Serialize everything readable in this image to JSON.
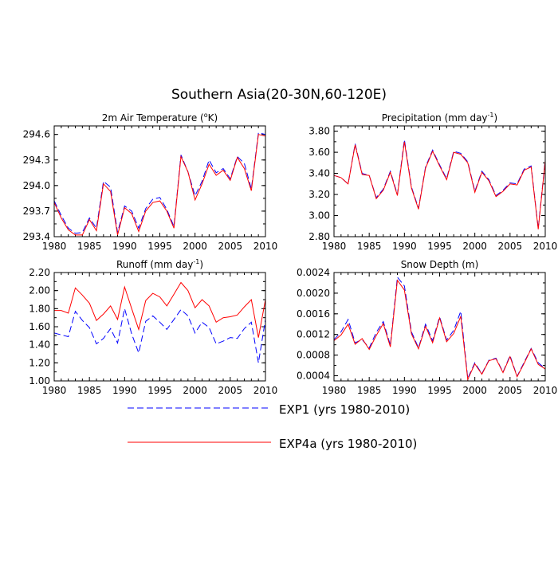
{
  "page_title": "Southern Asia(20-30N,60-120E)",
  "legend": [
    {
      "name": "EXP1 (yrs 1980-2010)",
      "color": "#0000ff",
      "dash": true
    },
    {
      "name": "EXP4a (yrs 1980-2010)",
      "color": "#ff0000",
      "dash": false
    }
  ],
  "chart_data": [
    {
      "type": "line",
      "title": "2m Air Temperature (",
      "title_unit": "o",
      "title_suffix": "K)",
      "x": [
        1980,
        1981,
        1982,
        1983,
        1984,
        1985,
        1986,
        1987,
        1988,
        1989,
        1990,
        1991,
        1992,
        1993,
        1994,
        1995,
        1996,
        1997,
        1998,
        1999,
        2000,
        2001,
        2002,
        2003,
        2004,
        2005,
        2006,
        2007,
        2008,
        2009,
        2010
      ],
      "xlim": [
        1980,
        2010
      ],
      "xticks": [
        "1980",
        "1985",
        "1990",
        "1995",
        "2000",
        "2005",
        "2010"
      ],
      "ylim": [
        293.4,
        294.7
      ],
      "yticks": [
        "293.4",
        "293.7",
        "294.0",
        "294.3",
        "294.6"
      ],
      "series": [
        {
          "name": "EXP1",
          "values": [
            293.82,
            293.65,
            293.5,
            293.44,
            293.45,
            293.62,
            293.5,
            294.05,
            293.98,
            293.45,
            293.76,
            293.7,
            293.5,
            293.73,
            293.84,
            293.86,
            293.72,
            293.52,
            294.36,
            294.16,
            293.88,
            294.05,
            294.3,
            294.15,
            294.2,
            294.08,
            294.34,
            294.26,
            293.96,
            294.62,
            294.6
          ]
        },
        {
          "name": "EXP4a",
          "values": [
            293.8,
            293.62,
            293.48,
            293.42,
            293.42,
            293.6,
            293.47,
            294.02,
            293.93,
            293.42,
            293.74,
            293.67,
            293.46,
            293.7,
            293.8,
            293.82,
            293.7,
            293.5,
            294.34,
            294.16,
            293.83,
            294.02,
            294.25,
            294.12,
            294.18,
            294.06,
            294.33,
            294.2,
            293.94,
            294.6,
            294.58
          ]
        }
      ]
    },
    {
      "type": "line",
      "title": "Precipitation (mm day",
      "title_unit": "-1",
      "title_suffix": ")",
      "x": [
        1980,
        1981,
        1982,
        1983,
        1984,
        1985,
        1986,
        1987,
        1988,
        1989,
        1990,
        1991,
        1992,
        1993,
        1994,
        1995,
        1996,
        1997,
        1998,
        1999,
        2000,
        2001,
        2002,
        2003,
        2004,
        2005,
        2006,
        2007,
        2008,
        2009,
        2010
      ],
      "xlim": [
        1980,
        2010
      ],
      "xticks": [
        "1980",
        "1985",
        "1990",
        "1995",
        "2000",
        "2005",
        "2010"
      ],
      "ylim": [
        2.8,
        3.85
      ],
      "yticks": [
        "2.80",
        "3.00",
        "3.20",
        "3.40",
        "3.60",
        "3.80"
      ],
      "series": [
        {
          "name": "EXP1",
          "values": [
            3.38,
            3.36,
            3.3,
            3.68,
            3.4,
            3.38,
            3.17,
            3.25,
            3.42,
            3.2,
            3.72,
            3.27,
            3.07,
            3.46,
            3.62,
            3.48,
            3.35,
            3.61,
            3.59,
            3.51,
            3.23,
            3.42,
            3.34,
            3.19,
            3.24,
            3.31,
            3.3,
            3.44,
            3.47,
            2.88,
            3.53
          ]
        },
        {
          "name": "EXP4a",
          "values": [
            3.38,
            3.36,
            3.3,
            3.67,
            3.39,
            3.38,
            3.16,
            3.24,
            3.41,
            3.19,
            3.7,
            3.26,
            3.06,
            3.45,
            3.61,
            3.47,
            3.34,
            3.6,
            3.58,
            3.5,
            3.22,
            3.41,
            3.33,
            3.18,
            3.23,
            3.3,
            3.29,
            3.43,
            3.46,
            2.87,
            3.52
          ]
        }
      ]
    },
    {
      "type": "line",
      "title": "Runoff (mm day",
      "title_unit": "-1",
      "title_suffix": ")",
      "x": [
        1980,
        1981,
        1982,
        1983,
        1984,
        1985,
        1986,
        1987,
        1988,
        1989,
        1990,
        1991,
        1992,
        1993,
        1994,
        1995,
        1996,
        1997,
        1998,
        1999,
        2000,
        2001,
        2002,
        2003,
        2004,
        2005,
        2006,
        2007,
        2008,
        2009,
        2010
      ],
      "xlim": [
        1980,
        2010
      ],
      "xticks": [
        "1980",
        "1985",
        "1990",
        "1995",
        "2000",
        "2005",
        "2010"
      ],
      "ylim": [
        1.0,
        2.2
      ],
      "yticks": [
        "1.00",
        "1.20",
        "1.40",
        "1.60",
        "1.80",
        "2.00",
        "2.20"
      ],
      "series": [
        {
          "name": "EXP1",
          "values": [
            1.53,
            1.51,
            1.49,
            1.77,
            1.67,
            1.59,
            1.41,
            1.47,
            1.58,
            1.42,
            1.8,
            1.52,
            1.31,
            1.66,
            1.72,
            1.65,
            1.57,
            1.68,
            1.79,
            1.72,
            1.53,
            1.65,
            1.59,
            1.41,
            1.44,
            1.48,
            1.47,
            1.58,
            1.65,
            1.2,
            1.68
          ]
        },
        {
          "name": "EXP4a",
          "values": [
            1.78,
            1.78,
            1.75,
            2.03,
            1.95,
            1.86,
            1.67,
            1.74,
            1.83,
            1.68,
            2.04,
            1.8,
            1.57,
            1.89,
            1.97,
            1.93,
            1.83,
            1.96,
            2.09,
            2.0,
            1.81,
            1.9,
            1.83,
            1.65,
            1.7,
            1.71,
            1.73,
            1.82,
            1.9,
            1.48,
            1.9
          ]
        }
      ]
    },
    {
      "type": "line",
      "title": "Snow Depth (m)",
      "title_unit": "",
      "title_suffix": "",
      "x": [
        1980,
        1981,
        1982,
        1983,
        1984,
        1985,
        1986,
        1987,
        1988,
        1989,
        1990,
        1991,
        1992,
        1993,
        1994,
        1995,
        1996,
        1997,
        1998,
        1999,
        2000,
        2001,
        2002,
        2003,
        2004,
        2005,
        2006,
        2007,
        2008,
        2009,
        2010
      ],
      "xlim": [
        1980,
        2010
      ],
      "xticks": [
        "1980",
        "1985",
        "1990",
        "1995",
        "2000",
        "2005",
        "2010"
      ],
      "ylim": [
        0.0003,
        0.0024
      ],
      "yticks": [
        "0.0004",
        "0.0008",
        "0.0012",
        "0.0016",
        "0.0020",
        "0.0024"
      ],
      "series": [
        {
          "name": "EXP1",
          "values": [
            0.0011,
            0.00125,
            0.00149,
            0.00104,
            0.0011,
            0.00094,
            0.00124,
            0.00145,
            0.00099,
            0.00231,
            0.00214,
            0.00125,
            0.00094,
            0.0014,
            0.00108,
            0.00154,
            0.00109,
            0.00128,
            0.00165,
            0.00035,
            0.00065,
            0.00044,
            0.0007,
            0.00074,
            0.00047,
            0.00079,
            0.00039,
            0.00066,
            0.00093,
            0.00065,
            0.00054
          ]
        },
        {
          "name": "EXP4a",
          "values": [
            0.00108,
            0.00119,
            0.0014,
            0.00101,
            0.00112,
            0.00091,
            0.00118,
            0.00141,
            0.00096,
            0.00225,
            0.00206,
            0.00121,
            0.00092,
            0.00136,
            0.00104,
            0.00152,
            0.00106,
            0.00122,
            0.00155,
            0.00033,
            0.00063,
            0.00043,
            0.00069,
            0.00073,
            0.00046,
            0.00077,
            0.00038,
            0.00064,
            0.00092,
            0.00062,
            0.00053
          ]
        }
      ]
    }
  ]
}
